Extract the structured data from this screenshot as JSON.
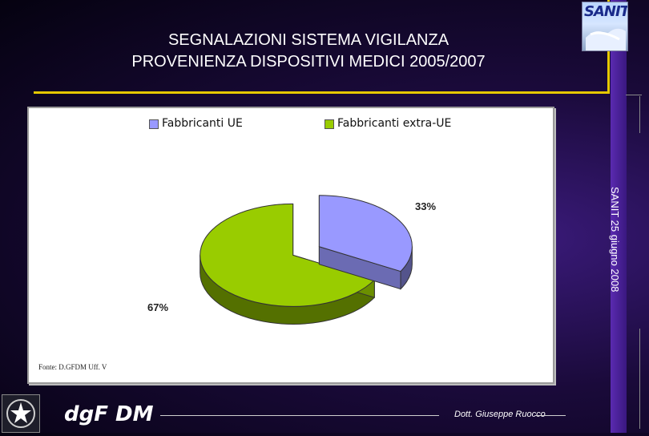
{
  "title_line1": "SEGNALAZIONI SISTEMA VIGILANZA",
  "title_line2": "PROVENIENZA DISPOSITIVI MEDICI 2005/2007",
  "logo_text": "SANIT",
  "side_text": "SANIT 25 giugno 2008",
  "footer": {
    "brand": "dgF DM",
    "author": "Dott. Giuseppe Ruocco"
  },
  "source_text": "Fonte: D.GFDM Uff. V",
  "colors": {
    "title_rule": "#e6c800",
    "slice_ue": "#9999ff",
    "slice_extra_ue": "#99cc00"
  },
  "chart_data": {
    "type": "pie",
    "labels": [
      "Fabbricanti UE",
      "Fabbricanti extra-UE"
    ],
    "values": [
      33,
      67
    ],
    "value_labels": [
      "33%",
      "67%"
    ],
    "three_d": true,
    "exploded": true,
    "legend_position": "top"
  }
}
